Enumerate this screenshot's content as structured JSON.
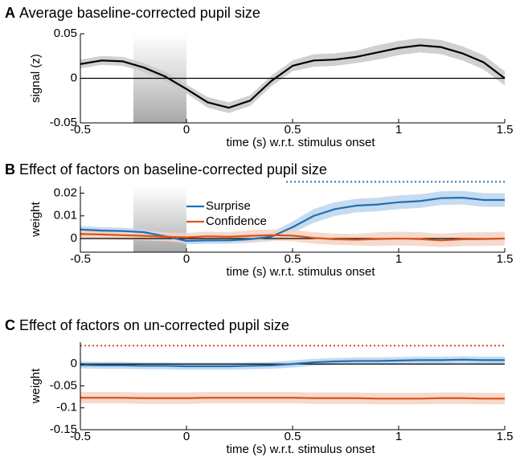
{
  "chart_data": [
    {
      "type": "line",
      "panel": "A",
      "title": "Average baseline-corrected pupil size",
      "xlabel": "time (s) w.r.t. stimulus onset",
      "ylabel": "signal (z)",
      "xlim": [
        -0.5,
        1.5
      ],
      "xticks": [
        -0.5,
        0,
        0.5,
        1,
        1.5
      ],
      "ylim": [
        -0.05,
        0.05
      ],
      "yticks": [
        -0.05,
        0,
        0.05
      ],
      "shaded_region": [
        -0.25,
        0
      ],
      "x": [
        -0.5,
        -0.4,
        -0.3,
        -0.2,
        -0.1,
        0,
        0.1,
        0.2,
        0.3,
        0.4,
        0.5,
        0.6,
        0.7,
        0.8,
        0.9,
        1.0,
        1.1,
        1.2,
        1.3,
        1.4,
        1.5
      ],
      "series": [
        {
          "color": "#000000",
          "band_color": "#c8c8c8",
          "values": [
            0.016,
            0.02,
            0.019,
            0.012,
            0.002,
            -0.012,
            -0.027,
            -0.033,
            -0.025,
            -0.003,
            0.014,
            0.02,
            0.021,
            0.024,
            0.029,
            0.034,
            0.037,
            0.035,
            0.028,
            0.018,
            0.0
          ],
          "error": [
            0.005,
            0.005,
            0.005,
            0.005,
            0.005,
            0.005,
            0.006,
            0.006,
            0.006,
            0.006,
            0.006,
            0.007,
            0.007,
            0.007,
            0.008,
            0.008,
            0.008,
            0.008,
            0.008,
            0.008,
            0.008
          ]
        }
      ]
    },
    {
      "type": "line",
      "panel": "B",
      "title": "Effect of factors on baseline-corrected pupil size",
      "xlabel": "time (s) w.r.t. stimulus onset",
      "ylabel": "weight",
      "xlim": [
        -0.5,
        1.5
      ],
      "xticks": [
        -0.5,
        0,
        0.5,
        1,
        1.5
      ],
      "ylim": [
        -0.006,
        0.023
      ],
      "yticks": [
        0,
        0.01,
        0.02
      ],
      "shaded_region": [
        -0.25,
        0
      ],
      "significance": [
        {
          "from": 0.47,
          "to": 1.5,
          "y": 0.025,
          "color": "#1f6fb5"
        }
      ],
      "legend": "upper center",
      "x": [
        -0.5,
        -0.4,
        -0.3,
        -0.2,
        -0.1,
        0,
        0.1,
        0.2,
        0.3,
        0.4,
        0.5,
        0.6,
        0.7,
        0.8,
        0.9,
        1.0,
        1.1,
        1.2,
        1.3,
        1.4,
        1.5
      ],
      "series": [
        {
          "name": "Surprise",
          "color": "#1f6fb5",
          "band_color": "#bcd5ec",
          "values": [
            0.004,
            0.0035,
            0.0033,
            0.0028,
            0.001,
            -0.001,
            -0.0008,
            -0.0008,
            -0.0003,
            0.0008,
            0.005,
            0.01,
            0.013,
            0.0145,
            0.015,
            0.016,
            0.0165,
            0.0178,
            0.018,
            0.017,
            0.017
          ],
          "error": [
            0.0015,
            0.0015,
            0.0015,
            0.0015,
            0.0015,
            0.0015,
            0.0015,
            0.0015,
            0.0015,
            0.002,
            0.0025,
            0.003,
            0.003,
            0.003,
            0.003,
            0.003,
            0.003,
            0.003,
            0.003,
            0.003,
            0.003
          ]
        },
        {
          "name": "Confidence",
          "color": "#d95319",
          "band_color": "#f6d2c2",
          "values": [
            0.002,
            0.0018,
            0.0015,
            0.0012,
            0.0008,
            0.0005,
            0.001,
            0.0008,
            0.0012,
            0.0015,
            0.0013,
            0.0003,
            -0.0003,
            -0.0005,
            -0.0002,
            0,
            -0.0002,
            -0.0008,
            -0.0003,
            -0.0002,
            0
          ],
          "error": [
            0.002,
            0.002,
            0.002,
            0.002,
            0.002,
            0.002,
            0.002,
            0.002,
            0.0025,
            0.0025,
            0.0025,
            0.0025,
            0.0025,
            0.0025,
            0.003,
            0.003,
            0.003,
            0.003,
            0.003,
            0.003,
            0.003
          ]
        }
      ]
    },
    {
      "type": "line",
      "panel": "C",
      "title": "Effect of factors on un-corrected pupil size",
      "xlabel": "time (s) w.r.t. stimulus onset",
      "ylabel": "weight",
      "xlim": [
        -0.5,
        1.5
      ],
      "xticks": [
        -0.5,
        0,
        0.5,
        1,
        1.5
      ],
      "ylim": [
        -0.15,
        0.05
      ],
      "yticks": [
        -0.15,
        -0.1,
        -0.05,
        0
      ],
      "significance": [
        {
          "from": -0.5,
          "to": 1.5,
          "y": 0.042,
          "color": "#d95319"
        }
      ],
      "x": [
        -0.5,
        -0.4,
        -0.3,
        -0.2,
        -0.1,
        0,
        0.1,
        0.2,
        0.3,
        0.4,
        0.5,
        0.6,
        0.7,
        0.8,
        0.9,
        1.0,
        1.1,
        1.2,
        1.3,
        1.4,
        1.5
      ],
      "series": [
        {
          "name": "Surprise",
          "color": "#1f6fb5",
          "band_color": "#bcd5ec",
          "values": [
            -0.002,
            -0.003,
            -0.003,
            -0.004,
            -0.004,
            -0.005,
            -0.005,
            -0.005,
            -0.004,
            -0.003,
            0.0,
            0.004,
            0.006,
            0.007,
            0.007,
            0.008,
            0.009,
            0.009,
            0.01,
            0.009,
            0.009
          ],
          "error": [
            0.008,
            0.008,
            0.008,
            0.008,
            0.008,
            0.008,
            0.008,
            0.008,
            0.008,
            0.008,
            0.008,
            0.008,
            0.008,
            0.008,
            0.008,
            0.008,
            0.008,
            0.008,
            0.008,
            0.008,
            0.008
          ]
        },
        {
          "name": "Confidence",
          "color": "#d95319",
          "band_color": "#f6d2c2",
          "values": [
            -0.077,
            -0.077,
            -0.077,
            -0.078,
            -0.078,
            -0.078,
            -0.077,
            -0.077,
            -0.077,
            -0.077,
            -0.077,
            -0.078,
            -0.078,
            -0.078,
            -0.079,
            -0.079,
            -0.079,
            -0.078,
            -0.078,
            -0.079,
            -0.079
          ],
          "error": [
            0.013,
            0.013,
            0.013,
            0.013,
            0.013,
            0.013,
            0.013,
            0.013,
            0.013,
            0.013,
            0.013,
            0.013,
            0.013,
            0.013,
            0.013,
            0.013,
            0.013,
            0.013,
            0.013,
            0.013,
            0.013
          ]
        }
      ]
    }
  ]
}
